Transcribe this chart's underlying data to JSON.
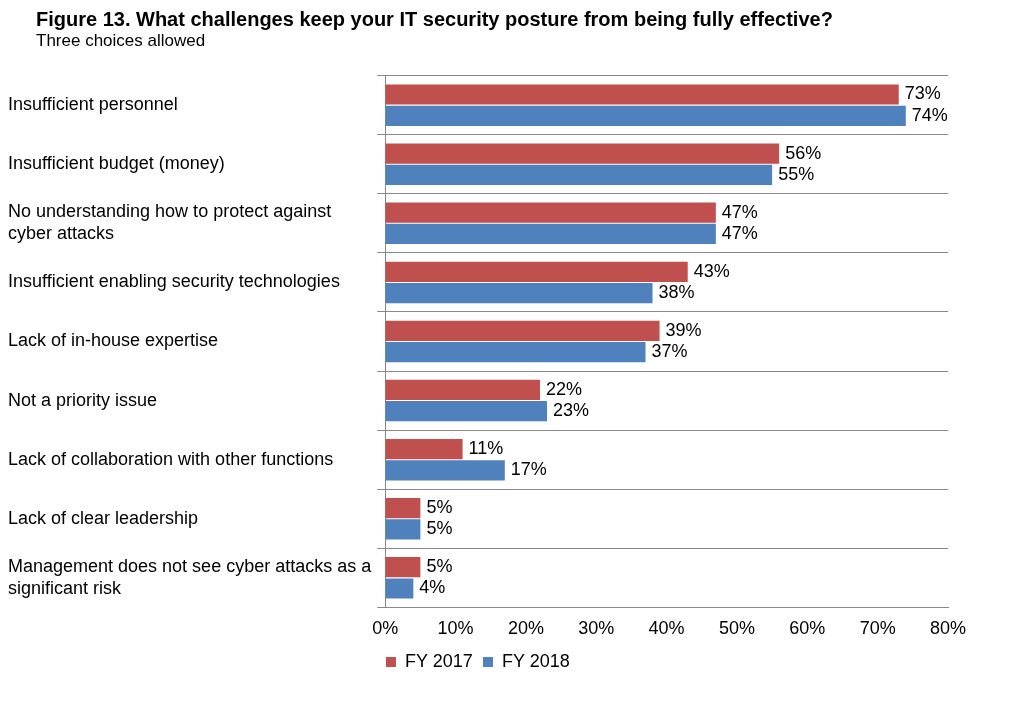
{
  "chart_data": {
    "type": "bar",
    "orientation": "horizontal",
    "title": "Figure 13. What challenges keep your IT security posture from being fully effective?",
    "subtitle": "Three choices allowed",
    "categories": [
      "Insufficient personnel",
      "Insufficient budget (money)",
      "No understanding how to protect against cyber attacks",
      "Insufficient enabling security technologies",
      "Lack of in-house expertise",
      "Not a priority issue",
      "Lack of collaboration with other functions",
      "Lack of clear leadership",
      "Management does not see cyber attacks as a significant risk"
    ],
    "series": [
      {
        "name": "FY 2017",
        "color": "#c0504d",
        "values": [
          73,
          56,
          47,
          43,
          39,
          22,
          11,
          5,
          5
        ],
        "value_labels": [
          "73%",
          "56%",
          "47%",
          "43%",
          "39%",
          "22%",
          "11%",
          "5%",
          "5%"
        ]
      },
      {
        "name": "FY 2018",
        "color": "#4f81bd",
        "values": [
          74,
          55,
          47,
          38,
          37,
          23,
          17,
          5,
          4
        ],
        "value_labels": [
          "74%",
          "55%",
          "47%",
          "38%",
          "37%",
          "23%",
          "17%",
          "5%",
          "4%"
        ]
      }
    ],
    "xlim": [
      0,
      80
    ],
    "xticks": [
      {
        "value": 0,
        "label": "0%"
      },
      {
        "value": 10,
        "label": "10%"
      },
      {
        "value": 20,
        "label": "20%"
      },
      {
        "value": 30,
        "label": "30%"
      },
      {
        "value": 40,
        "label": "40%"
      },
      {
        "value": 50,
        "label": "50%"
      },
      {
        "value": 60,
        "label": "60%"
      },
      {
        "value": 70,
        "label": "70%"
      },
      {
        "value": 80,
        "label": "80%"
      }
    ],
    "grid": "y",
    "legend": "bottom"
  }
}
